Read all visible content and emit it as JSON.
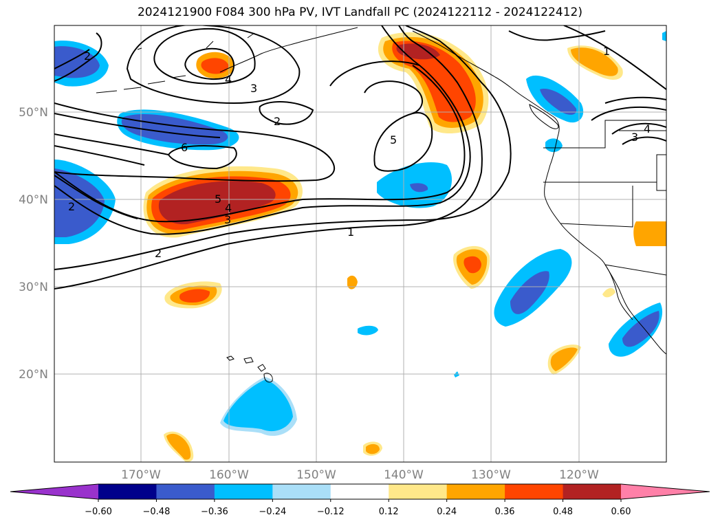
{
  "title": "2024121900 F084 300 hPa PV, IVT Landfall PC (2024122112 - 2024122412)",
  "map": {
    "lat_labels": [
      "50°N",
      "40°N",
      "30°N",
      "20°N"
    ],
    "lon_labels": [
      "170°W",
      "160°W",
      "150°W",
      "140°W",
      "130°W",
      "120°W"
    ]
  },
  "colorbar": {
    "ticks": [
      "−0.60",
      "−0.48",
      "−0.36",
      "−0.24",
      "−0.12",
      "0.12",
      "0.24",
      "0.36",
      "0.48",
      "0.60"
    ],
    "colors": {
      "under": "#9932cc",
      "bins": [
        "#00008b",
        "#3a5bcc",
        "#00bfff",
        "#aadff8",
        "#ffffff",
        "#ffe88a",
        "#ffa500",
        "#ff4500",
        "#b22222"
      ],
      "over": "#ff80a8"
    }
  },
  "contour_labels": [
    "2",
    "4",
    "3",
    "2",
    "6",
    "5",
    "1",
    "5",
    "4",
    "3",
    "2",
    "2",
    "1",
    "3",
    "4"
  ]
}
